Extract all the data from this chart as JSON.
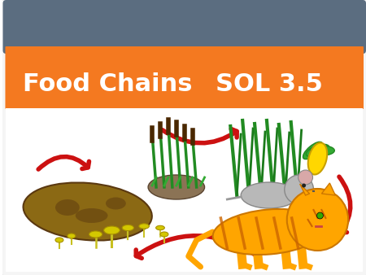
{
  "bg_color": "#ffffff",
  "header_color": "#5b6d80",
  "banner_color": "#f47920",
  "title_text": "Food Chains",
  "sol_text": "SOL 3.5",
  "title_color": "#ffffff",
  "title_fontsize": 22,
  "title_weight": "bold",
  "arrow_color": "#cc1111",
  "slide_edge_color": "#cccccc",
  "slide_bg": "#f5f5f5"
}
